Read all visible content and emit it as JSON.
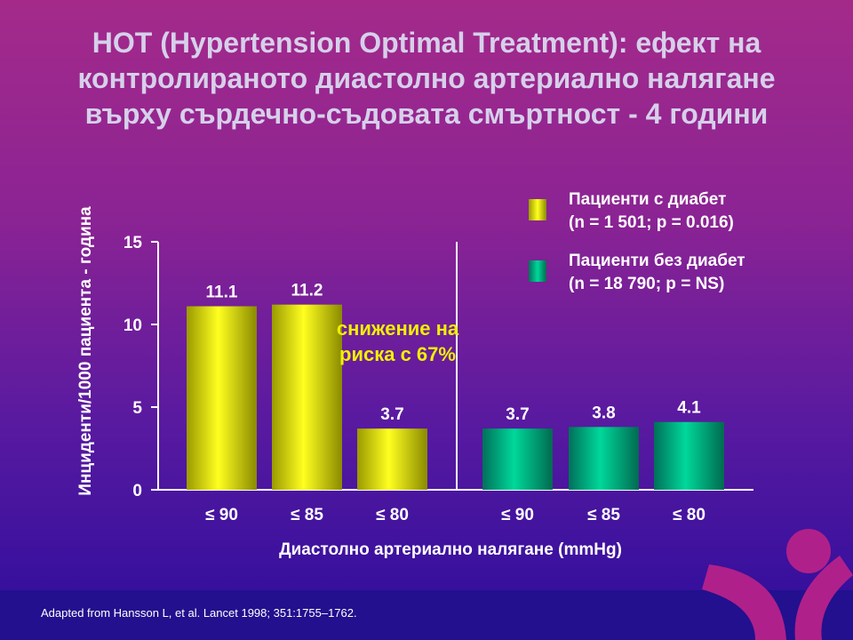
{
  "title": "HOT (Hypertension Optimal Treatment): ефект на контролираното диастолно артериално налягане върху сърдечно-съдовата смъртност - 4 години",
  "chart_data": {
    "type": "bar",
    "xlabel": "Диастолно артериално налягане (mmHg)",
    "ylabel": "Инциденти/1000 пациента - година",
    "ylim": [
      0,
      15
    ],
    "yticks": [
      "0",
      "5",
      "10",
      "15"
    ],
    "categories": [
      "≤ 90",
      "≤ 85",
      "≤ 80"
    ],
    "series": [
      {
        "name": "Пациенти с диабет",
        "detail": "(n = 1 501; p = 0.016)",
        "color": "#e6e600",
        "values": [
          11.1,
          11.2,
          3.7
        ],
        "labels": [
          "11.1",
          "11.2",
          "3.7"
        ]
      },
      {
        "name": "Пациенти без диабет",
        "detail": "(n = 18 790; p = NS)",
        "color": "#00b080",
        "values": [
          3.7,
          3.8,
          4.1
        ],
        "labels": [
          "3.7",
          "3.8",
          "4.1"
        ]
      }
    ],
    "annotation": "снижение на риска с 67%",
    "legend": "top-right"
  },
  "source": "Adapted from Hansson L, et al. Lancet 1998; 351:1755–1762."
}
